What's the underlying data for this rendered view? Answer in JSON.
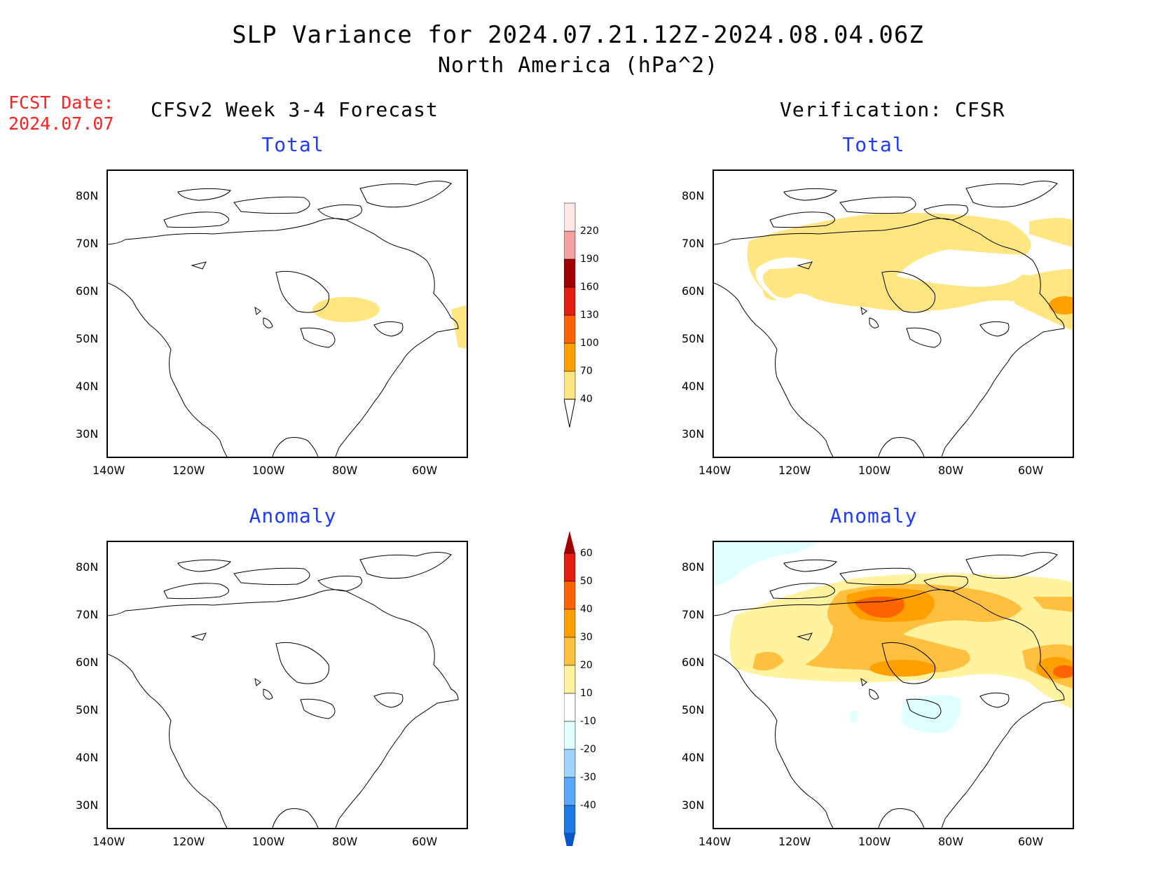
{
  "header": {
    "title": "SLP Variance for 2024.07.21.12Z-2024.08.04.06Z",
    "subtitle": "North America (hPa^2)"
  },
  "fcst": {
    "label": "FCST Date:",
    "date": "2024.07.07"
  },
  "columns": {
    "left": "CFSv2 Week 3-4 Forecast",
    "right": "Verification: CFSR"
  },
  "panels": {
    "total": "Total",
    "anomaly": "Anomaly"
  },
  "axes": {
    "lat_labels": [
      "80N",
      "70N",
      "60N",
      "50N",
      "40N",
      "30N"
    ],
    "lon_labels": [
      "140W",
      "120W",
      "100W",
      "80W",
      "60W"
    ]
  },
  "colorbars": {
    "total": {
      "levels": [
        "40",
        "70",
        "100",
        "130",
        "160",
        "190",
        "220"
      ],
      "colors": [
        "#ffe680",
        "#ffa000",
        "#ff6400",
        "#e31e0c",
        "#a00000",
        "#f4a0a0",
        "#fde8e8"
      ]
    },
    "anomaly": {
      "levels": [
        "60",
        "50",
        "40",
        "30",
        "20",
        "10",
        "-10",
        "-20",
        "-30",
        "-40"
      ],
      "colors_top_to_bottom": [
        "#a00000",
        "#e31e0c",
        "#ff6400",
        "#ffa000",
        "#ffc040",
        "#fff3a0",
        "#ffffff",
        "#e0ffff",
        "#9fd4ff",
        "#5aa8ff",
        "#1e78e6",
        "#0a55c8"
      ]
    }
  },
  "colors": {
    "title_red": "#ff2020",
    "panel_title_blue": "#1f3bff"
  }
}
